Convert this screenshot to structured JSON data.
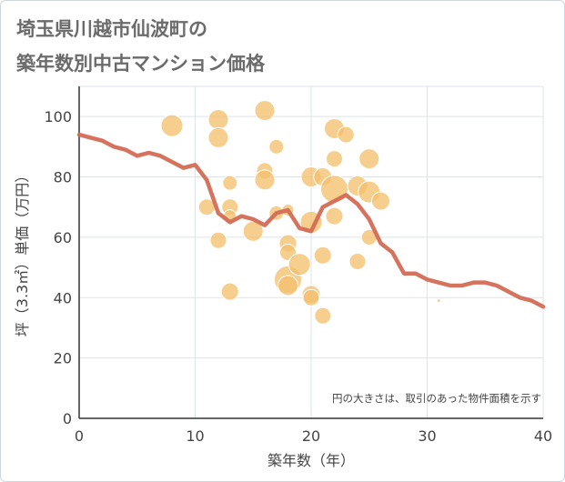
{
  "title_lines": [
    "埼玉県川越市仙波町の",
    "築年数別中古マンション価格"
  ],
  "chart_data": {
    "type": "scatter",
    "title": "埼玉県川越市仙波町の築年数別中古マンション価格",
    "xlabel": "築年数（年）",
    "ylabel": "坪（3.3㎡）単価（万円）",
    "xlim": [
      0,
      40
    ],
    "ylim": [
      0,
      110
    ],
    "xticks": [
      0,
      10,
      20,
      30,
      40
    ],
    "yticks": [
      0,
      20,
      40,
      60,
      80,
      100
    ],
    "grid": true,
    "annotation": "円の大きさは、取引のあった物件面積を示す",
    "colors": {
      "bubble": "#f3c06e",
      "line": "#d46c55",
      "grid": "#dde3e8",
      "axis": "#333333"
    },
    "series": [
      {
        "kind": "bubble",
        "points": [
          {
            "x": 8,
            "y": 97,
            "size": 24
          },
          {
            "x": 12,
            "y": 99,
            "size": 22
          },
          {
            "x": 12,
            "y": 93,
            "size": 22
          },
          {
            "x": 11,
            "y": 70,
            "size": 18
          },
          {
            "x": 12,
            "y": 59,
            "size": 18
          },
          {
            "x": 13,
            "y": 78,
            "size": 16
          },
          {
            "x": 13,
            "y": 70,
            "size": 18
          },
          {
            "x": 13,
            "y": 67,
            "size": 14
          },
          {
            "x": 13,
            "y": 42,
            "size": 19
          },
          {
            "x": 15,
            "y": 62,
            "size": 22
          },
          {
            "x": 16,
            "y": 102,
            "size": 22
          },
          {
            "x": 16,
            "y": 82,
            "size": 18
          },
          {
            "x": 16,
            "y": 79,
            "size": 22
          },
          {
            "x": 17,
            "y": 90,
            "size": 16
          },
          {
            "x": 17,
            "y": 68,
            "size": 16
          },
          {
            "x": 18,
            "y": 69,
            "size": 13
          },
          {
            "x": 18,
            "y": 58,
            "size": 19
          },
          {
            "x": 18,
            "y": 55,
            "size": 18
          },
          {
            "x": 18,
            "y": 46,
            "size": 30
          },
          {
            "x": 18,
            "y": 44,
            "size": 22
          },
          {
            "x": 19,
            "y": 51,
            "size": 24
          },
          {
            "x": 20,
            "y": 80,
            "size": 22
          },
          {
            "x": 20,
            "y": 65,
            "size": 24
          },
          {
            "x": 20,
            "y": 41,
            "size": 20
          },
          {
            "x": 20,
            "y": 40,
            "size": 18
          },
          {
            "x": 21,
            "y": 80,
            "size": 20
          },
          {
            "x": 21,
            "y": 54,
            "size": 19
          },
          {
            "x": 21,
            "y": 34,
            "size": 18
          },
          {
            "x": 22,
            "y": 96,
            "size": 22
          },
          {
            "x": 22,
            "y": 86,
            "size": 18
          },
          {
            "x": 22,
            "y": 76,
            "size": 30
          },
          {
            "x": 22,
            "y": 67,
            "size": 19
          },
          {
            "x": 23,
            "y": 94,
            "size": 18
          },
          {
            "x": 24,
            "y": 77,
            "size": 22
          },
          {
            "x": 24,
            "y": 52,
            "size": 18
          },
          {
            "x": 25,
            "y": 86,
            "size": 22
          },
          {
            "x": 25,
            "y": 75,
            "size": 24
          },
          {
            "x": 25,
            "y": 60,
            "size": 17
          },
          {
            "x": 26,
            "y": 72,
            "size": 20
          },
          {
            "x": 31,
            "y": 39,
            "size": 4
          }
        ]
      },
      {
        "kind": "line",
        "x": [
          0,
          1,
          2,
          3,
          4,
          5,
          6,
          7,
          8,
          9,
          10,
          11,
          12,
          13,
          14,
          15,
          16,
          17,
          18,
          19,
          20,
          21,
          22,
          23,
          24,
          25,
          26,
          27,
          28,
          29,
          30,
          31,
          32,
          33,
          34,
          35,
          36,
          37,
          38,
          39,
          40
        ],
        "y": [
          94,
          93,
          92,
          90,
          89,
          87,
          88,
          87,
          85,
          83,
          84,
          79,
          68,
          65,
          67,
          66,
          64,
          68,
          69,
          63,
          62,
          70,
          72,
          74,
          71,
          66,
          58,
          55,
          48,
          48,
          46,
          45,
          44,
          44,
          45,
          45,
          44,
          42,
          40,
          39,
          37
        ]
      }
    ]
  }
}
